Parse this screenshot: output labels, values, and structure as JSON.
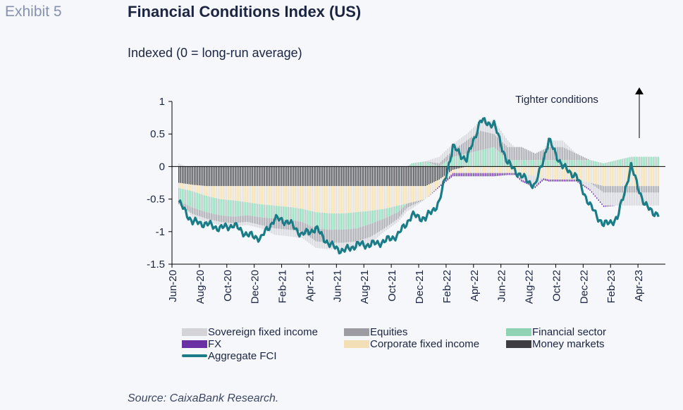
{
  "header": {
    "exhibit_label": "Exhibit 5",
    "title": "Financial Conditions Index (US)",
    "subtitle": "Indexed (0 = long-run average)"
  },
  "source": "Source: CaixaBank Research.",
  "colors": {
    "sovereign": "#d3d3d8",
    "equities": "#9c9ca2",
    "financial": "#8fd3b4",
    "fx": "#6a2fa3",
    "corporate": "#f2dfb6",
    "money": "#3e3e42",
    "aggregate": "#1a7c86",
    "axis": "#000000"
  },
  "chart_data": {
    "type": "area",
    "title": "Financial Conditions Index (US)",
    "ylabel": "Indexed (0 = long-run average)",
    "ylim": [
      -1.5,
      1
    ],
    "yticks": [
      "1",
      "0.5",
      "0",
      "-0.5",
      "-1",
      "-1.5"
    ],
    "xlim": [
      "2020-06",
      "2023-05"
    ],
    "x_tick_labels": [
      "Jun-20",
      "Aug-20",
      "Oct-20",
      "Dec-20",
      "Feb-21",
      "Apr-21",
      "Jun-21",
      "Aug-21",
      "Oct-21",
      "Dec-21",
      "Feb-22",
      "Apr-22",
      "Jun-22",
      "Aug-22",
      "Oct-22",
      "Dec-22",
      "Feb-23",
      "Apr-23"
    ],
    "annotation": "Tighter conditions",
    "legend": [
      {
        "name": "Sovereign fixed income",
        "color_key": "sovereign",
        "kind": "area"
      },
      {
        "name": "Equities",
        "color_key": "equities",
        "kind": "area"
      },
      {
        "name": "Financial sector",
        "color_key": "financial",
        "kind": "area"
      },
      {
        "name": "FX",
        "color_key": "fx",
        "kind": "area"
      },
      {
        "name": "Corporate fixed income",
        "color_key": "corporate",
        "kind": "area"
      },
      {
        "name": "Money markets",
        "color_key": "money",
        "kind": "area"
      },
      {
        "name": "Aggregate FCI",
        "color_key": "aggregate",
        "kind": "line"
      }
    ],
    "months": [
      "Jun-20",
      "Jul-20",
      "Aug-20",
      "Sep-20",
      "Oct-20",
      "Nov-20",
      "Dec-20",
      "Jan-21",
      "Feb-21",
      "Mar-21",
      "Apr-21",
      "May-21",
      "Jun-21",
      "Jul-21",
      "Aug-21",
      "Sep-21",
      "Oct-21",
      "Nov-21",
      "Dec-21",
      "Jan-22",
      "Feb-22",
      "Mar-22",
      "Apr-22",
      "May-22",
      "Jun-22",
      "Jul-22",
      "Aug-22",
      "Sep-22",
      "Oct-22",
      "Nov-22",
      "Dec-22",
      "Jan-23",
      "Feb-23",
      "Mar-23",
      "Apr-23",
      "May-23"
    ],
    "series": [
      {
        "name": "Money markets",
        "values": [
          -0.25,
          -0.28,
          -0.3,
          -0.3,
          -0.3,
          -0.3,
          -0.3,
          -0.3,
          -0.3,
          -0.3,
          -0.3,
          -0.3,
          -0.3,
          -0.3,
          -0.3,
          -0.3,
          -0.3,
          -0.3,
          -0.3,
          -0.2,
          -0.05,
          0.0,
          0.0,
          0.0,
          0.0,
          0.0,
          0.0,
          0.0,
          0.0,
          0.0,
          0.0,
          0.0,
          0.0,
          0.0,
          0.0,
          0.0
        ]
      },
      {
        "name": "Corporate fixed income",
        "values": [
          -0.08,
          -0.1,
          -0.15,
          -0.2,
          -0.22,
          -0.25,
          -0.28,
          -0.3,
          -0.32,
          -0.35,
          -0.4,
          -0.42,
          -0.42,
          -0.4,
          -0.38,
          -0.35,
          -0.3,
          -0.25,
          -0.2,
          -0.1,
          -0.05,
          -0.1,
          -0.1,
          -0.1,
          -0.1,
          -0.1,
          -0.15,
          -0.2,
          -0.2,
          -0.2,
          -0.25,
          -0.3,
          -0.3,
          -0.3,
          -0.3,
          -0.3
        ]
      },
      {
        "name": "Financial sector",
        "values": [
          -0.2,
          -0.25,
          -0.25,
          -0.25,
          -0.25,
          -0.2,
          -0.2,
          -0.2,
          -0.2,
          -0.2,
          -0.25,
          -0.25,
          -0.25,
          -0.25,
          -0.2,
          -0.15,
          -0.1,
          0.05,
          0.08,
          0.0,
          0.15,
          0.2,
          0.25,
          0.3,
          0.1,
          0.1,
          0.1,
          0.1,
          0.1,
          0.1,
          0.1,
          0.05,
          0.1,
          0.15,
          0.15,
          0.15
        ]
      },
      {
        "name": "Equities",
        "values": [
          -0.05,
          -0.1,
          -0.1,
          -0.1,
          -0.1,
          -0.1,
          -0.12,
          -0.15,
          -0.15,
          -0.15,
          -0.2,
          -0.2,
          -0.2,
          -0.2,
          -0.2,
          -0.15,
          -0.1,
          -0.05,
          0.0,
          0.05,
          0.1,
          0.2,
          0.3,
          0.2,
          0.2,
          0.2,
          0.1,
          0.2,
          0.2,
          0.1,
          0.0,
          -0.1,
          -0.1,
          -0.1,
          -0.1,
          -0.1
        ]
      },
      {
        "name": "Sovereign fixed income",
        "values": [
          0.05,
          -0.05,
          -0.05,
          -0.05,
          -0.05,
          -0.05,
          -0.05,
          -0.1,
          -0.1,
          -0.1,
          -0.1,
          -0.1,
          -0.1,
          -0.1,
          -0.1,
          -0.05,
          -0.05,
          -0.05,
          0.0,
          0.1,
          0.1,
          0.1,
          0.15,
          0.2,
          0.1,
          -0.1,
          -0.15,
          0.1,
          0.1,
          0.0,
          -0.1,
          -0.2,
          -0.2,
          -0.2,
          -0.2,
          -0.2
        ]
      },
      {
        "name": "FX",
        "values": [
          0.0,
          0.0,
          0.0,
          0.0,
          0.0,
          0.0,
          0.0,
          0.0,
          0.0,
          0.0,
          0.0,
          0.0,
          0.0,
          0.0,
          0.0,
          0.0,
          0.0,
          0.0,
          0.0,
          -0.02,
          -0.05,
          -0.05,
          -0.05,
          -0.05,
          -0.03,
          -0.03,
          -0.03,
          -0.03,
          -0.03,
          -0.03,
          -0.02,
          -0.02,
          0.0,
          0.0,
          0.0,
          0.0
        ]
      },
      {
        "name": "Aggregate FCI",
        "values": [
          -0.55,
          -0.85,
          -0.88,
          -0.95,
          -0.9,
          -1.05,
          -1.1,
          -0.8,
          -0.85,
          -1.05,
          -0.95,
          -1.2,
          -1.3,
          -1.2,
          -1.2,
          -1.15,
          -1.05,
          -0.75,
          -0.8,
          -0.55,
          0.3,
          0.1,
          0.7,
          0.65,
          0.05,
          -0.15,
          -0.3,
          0.4,
          0.0,
          -0.15,
          -0.6,
          -0.9,
          -0.8,
          0.0,
          -0.6,
          -0.75
        ]
      }
    ]
  }
}
